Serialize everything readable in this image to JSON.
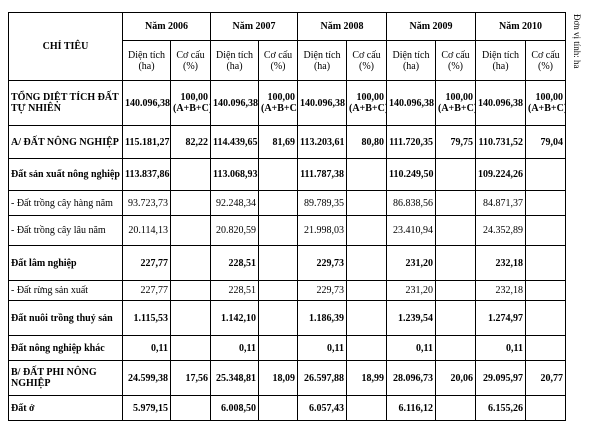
{
  "header": {
    "unit": "Đơn vị tính: ha",
    "label": "CHỈ TIÊU",
    "years": [
      "Năm 2006",
      "Năm 2007",
      "Năm 2008",
      "Năm 2009",
      "Năm 2010"
    ],
    "sub": [
      "Diện tích (ha)",
      "Cơ cấu (%)"
    ]
  },
  "table": {
    "rows": [
      {
        "label": "TỔNG DIỆT TÍCH ĐẤT TỰ NHIÊN",
        "bold": true,
        "cells": [
          "140.096,38",
          "100,00 (A+B+C)",
          "140.096,38",
          "100,00 (A+B+C)",
          "140.096,38",
          "100,00 (A+B+C)",
          "140.096,38",
          "100,00 (A+B+C)",
          "140.096,38",
          "100,00 (A+B+C)"
        ]
      },
      {
        "label": "A/ ĐẤT NÔNG NGHIỆP",
        "bold": true,
        "cells": [
          "115.181,27",
          "82,22",
          "114.439,65",
          "81,69",
          "113.203,61",
          "80,80",
          "111.720,35",
          "79,75",
          "110.731,52",
          "79,04"
        ]
      },
      {
        "label": "Đất sản xuất nông nghiệp",
        "bold": true,
        "cells": [
          "113.837,86",
          null,
          "113.068,93",
          null,
          "111.787,38",
          null,
          "110.249,50",
          null,
          "109.224,26",
          null
        ]
      },
      {
        "label": "- Đất trồng cây hàng năm",
        "bold": false,
        "cells": [
          "93.723,73",
          null,
          "92.248,34",
          null,
          "89.789,35",
          null,
          "86.838,56",
          null,
          "84.871,37",
          null
        ]
      },
      {
        "label": "- Đất trồng cây lâu năm",
        "bold": false,
        "cells": [
          "20.114,13",
          null,
          "20.820,59",
          null,
          "21.998,03",
          null,
          "23.410,94",
          null,
          "24.352,89",
          null
        ]
      },
      {
        "label": "Đất lâm nghiệp",
        "bold": true,
        "cells": [
          "227,77",
          null,
          "228,51",
          null,
          "229,73",
          null,
          "231,20",
          null,
          "232,18",
          null
        ]
      },
      {
        "label": "- Đất rừng sản xuất",
        "bold": false,
        "cells": [
          "227,77",
          null,
          "228,51",
          null,
          "229,73",
          null,
          "231,20",
          null,
          "232,18",
          null
        ]
      },
      {
        "label": "Đất nuôi trồng thuỷ sản",
        "bold": true,
        "cells": [
          "1.115,53",
          null,
          "1.142,10",
          null,
          "1.186,39",
          null,
          "1.239,54",
          null,
          "1.274,97",
          null
        ]
      },
      {
        "label": "Đất nông nghiệp khác",
        "bold": true,
        "cells": [
          "0,11",
          null,
          "0,11",
          null,
          "0,11",
          null,
          "0,11",
          null,
          "0,11",
          null
        ]
      },
      {
        "label": "B/ ĐẤT PHI NÔNG NGHIỆP",
        "bold": true,
        "cells": [
          "24.599,38",
          "17,56",
          "25.348,81",
          "18,09",
          "26.597,88",
          "18,99",
          "28.096,73",
          "20,06",
          "29.095,97",
          "20,77"
        ]
      },
      {
        "label": "Đất ở",
        "bold": true,
        "cells": [
          "5.979,15",
          null,
          "6.008,50",
          null,
          "6.057,43",
          null,
          "6.116,12",
          null,
          "6.155,26",
          null
        ]
      }
    ]
  }
}
